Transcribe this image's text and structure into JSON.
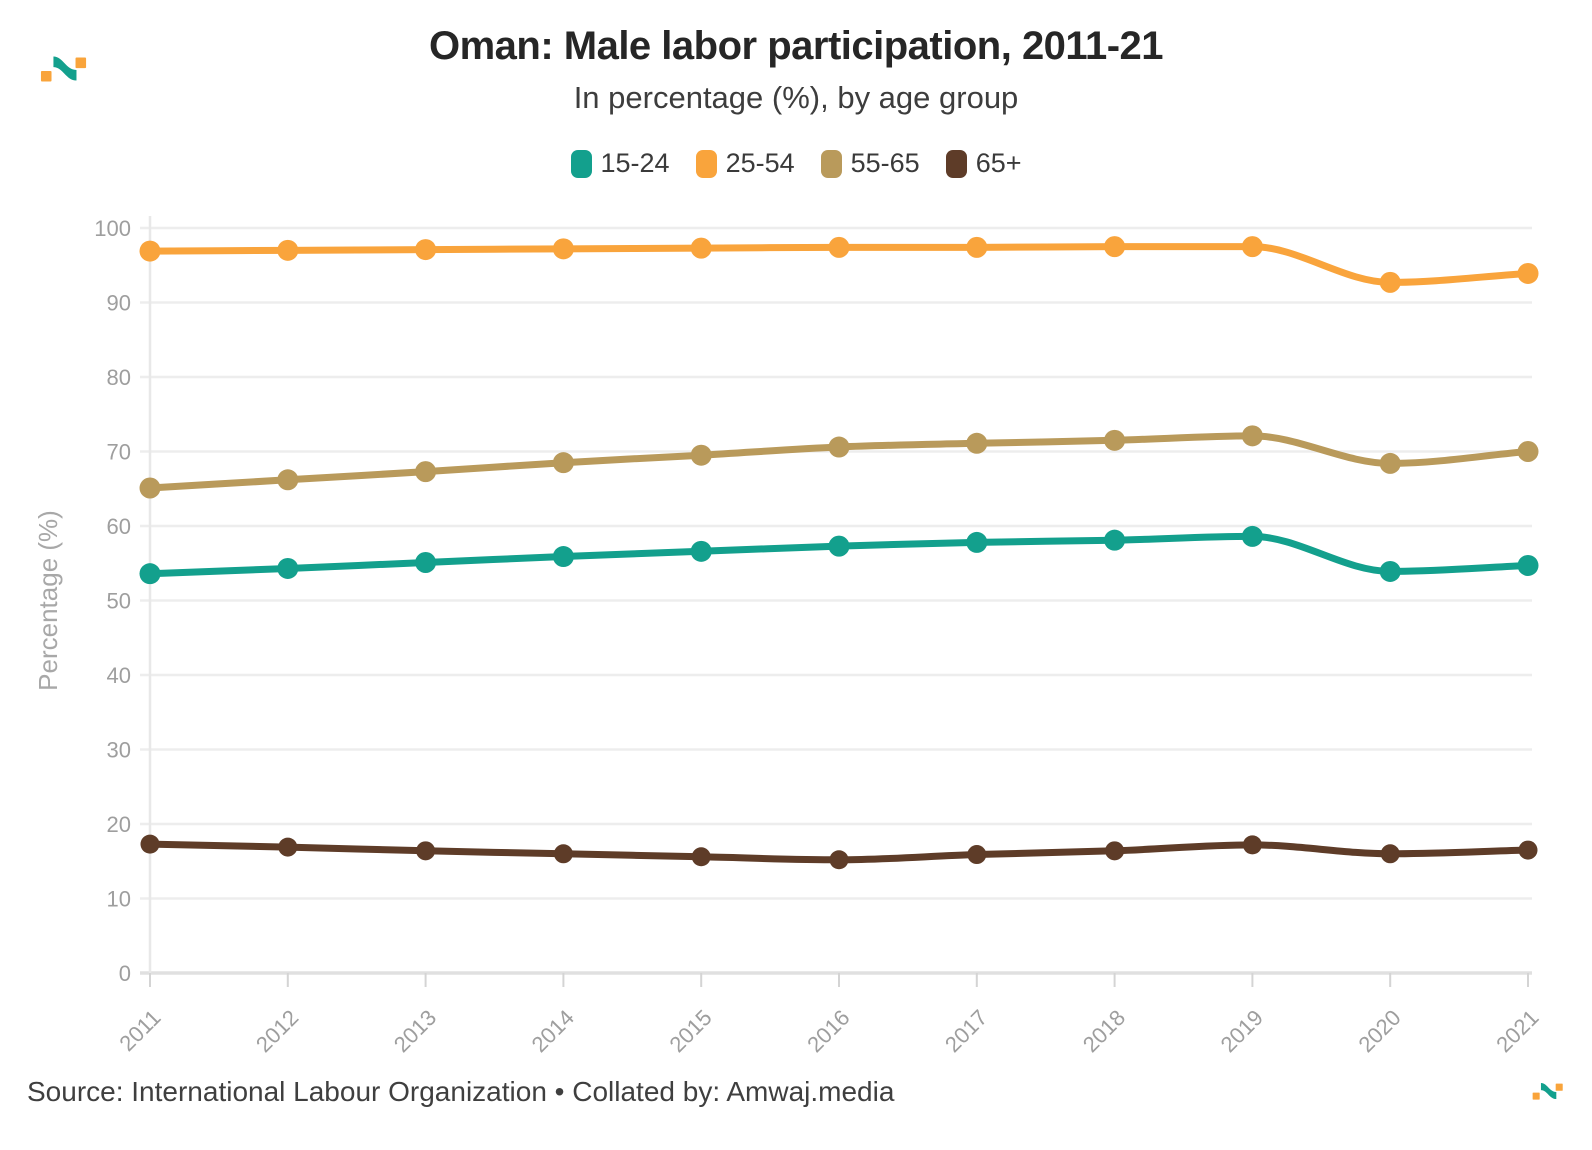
{
  "header": {
    "logo_name": "amwaj-logo"
  },
  "logo_colors": {
    "orange": "#F9A43B",
    "teal": "#13A08D"
  },
  "chart_data": {
    "type": "line",
    "title": "Oman: Male labor participation, 2011-21",
    "subtitle": "In percentage (%), by age group",
    "ylabel": "Percentage (%)",
    "xlabel": "",
    "x": [
      2011,
      2012,
      2013,
      2014,
      2015,
      2016,
      2017,
      2018,
      2019,
      2020,
      2021
    ],
    "series": [
      {
        "name": "15-24",
        "color": "#13A08D",
        "values": [
          53.6,
          54.3,
          55.1,
          55.9,
          56.6,
          57.3,
          57.8,
          58.1,
          58.6,
          53.9,
          54.7
        ]
      },
      {
        "name": "25-54",
        "color": "#F9A43C",
        "values": [
          96.9,
          97.0,
          97.1,
          97.2,
          97.3,
          97.4,
          97.4,
          97.5,
          97.5,
          92.7,
          93.9
        ]
      },
      {
        "name": "55-65",
        "color": "#B99A5B",
        "values": [
          65.1,
          66.2,
          67.3,
          68.5,
          69.5,
          70.6,
          71.1,
          71.5,
          72.1,
          68.4,
          70.0
        ]
      },
      {
        "name": "65+",
        "color": "#5E3C28",
        "values": [
          17.3,
          16.9,
          16.4,
          16.0,
          15.6,
          15.2,
          15.9,
          16.4,
          17.2,
          16.0,
          16.5
        ]
      }
    ],
    "ylim": [
      0,
      100
    ],
    "yticks": [
      0,
      10,
      20,
      30,
      40,
      50,
      60,
      70,
      80,
      90,
      100
    ],
    "grid": true,
    "legend_position": "top",
    "x_tick_rotation": -45
  },
  "footer": {
    "source": "Source: International Labour Organization • Collated by: Amwaj.media"
  }
}
